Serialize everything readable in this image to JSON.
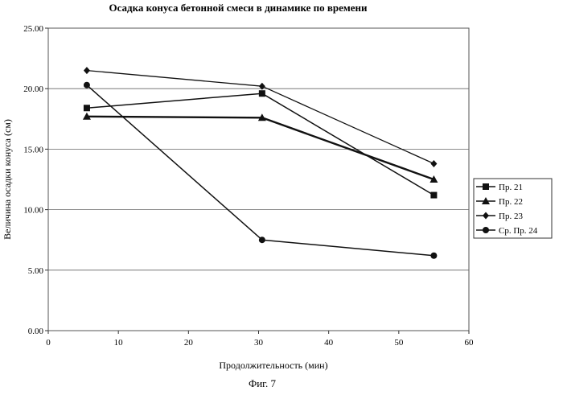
{
  "chart_data": {
    "type": "line",
    "title": "Осадка конуса бетонной смеси в динамике по времени",
    "xlabel": "Продолжительность (мин)",
    "ylabel": "Величина осадки конуса (см)",
    "xlim": [
      0,
      60
    ],
    "ylim": [
      0,
      25
    ],
    "xticks": [
      "0",
      "10",
      "20",
      "30",
      "40",
      "50",
      "60"
    ],
    "yticks": [
      "0.00",
      "5.00",
      "10.00",
      "15.00",
      "20.00",
      "25.00"
    ],
    "grid": "horizontal",
    "legend_position": "right",
    "series": [
      {
        "name": "Пр. 21",
        "marker": "square",
        "x": [
          5.5,
          30.5,
          55
        ],
        "y": [
          18.4,
          19.6,
          11.2
        ]
      },
      {
        "name": "Пр. 22",
        "marker": "triangle",
        "x": [
          5.5,
          30.5,
          55
        ],
        "y": [
          17.7,
          17.6,
          12.5
        ]
      },
      {
        "name": "Пр. 23",
        "marker": "diamond",
        "x": [
          5.5,
          30.5,
          55
        ],
        "y": [
          21.5,
          20.2,
          13.8
        ]
      },
      {
        "name": "Ср. Пр. 24",
        "marker": "circle",
        "x": [
          5.5,
          30.5,
          55
        ],
        "y": [
          20.3,
          7.5,
          6.2
        ]
      }
    ]
  },
  "caption": "Фиг. 7"
}
